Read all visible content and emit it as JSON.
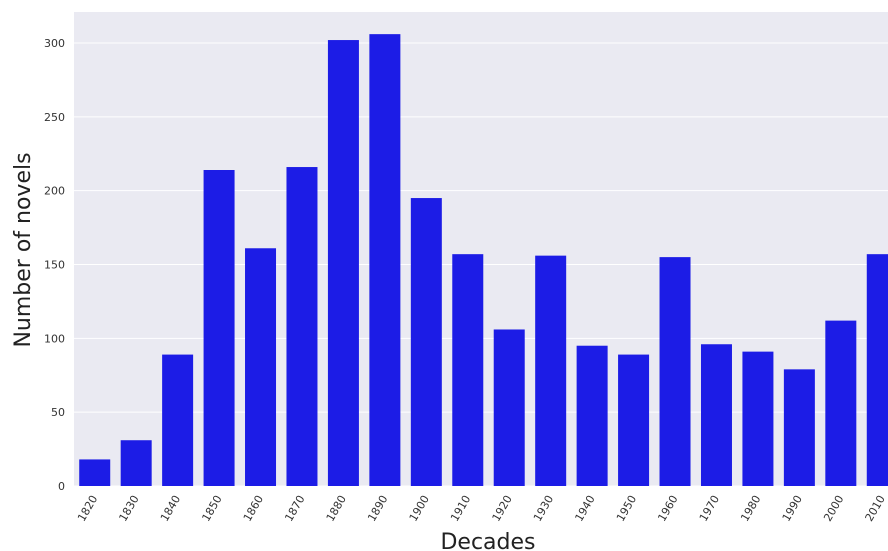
{
  "chart_data": {
    "type": "bar",
    "title": "",
    "xlabel": "Decades",
    "ylabel": "Number of novels",
    "categories": [
      "1820",
      "1830",
      "1840",
      "1850",
      "1860",
      "1870",
      "1880",
      "1890",
      "1900",
      "1910",
      "1920",
      "1930",
      "1940",
      "1950",
      "1960",
      "1970",
      "1980",
      "1990",
      "2000",
      "2010"
    ],
    "values": [
      18,
      31,
      89,
      214,
      161,
      216,
      302,
      306,
      195,
      157,
      106,
      156,
      95,
      89,
      155,
      96,
      91,
      79,
      112,
      157
    ],
    "ylim": [
      0,
      321
    ],
    "yticks": [
      0,
      50,
      100,
      150,
      200,
      250,
      300
    ],
    "grid": true,
    "colors": {
      "bar": "#1c1ce6",
      "plot_background": "#eaeaf2",
      "grid": "#ffffff"
    }
  }
}
